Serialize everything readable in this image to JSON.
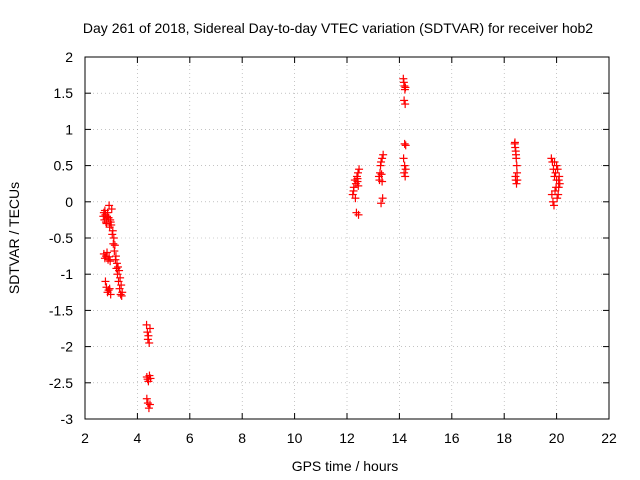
{
  "chart_data": {
    "type": "scatter",
    "title": "Day 261 of 2018, Sidereal Day-to-day VTEC variation (SDTVAR) for receiver hob2",
    "xlabel": "GPS time / hours",
    "ylabel": "SDTVAR / TECUs",
    "xlim": [
      2,
      22
    ],
    "ylim": [
      -3,
      2
    ],
    "xticks": [
      2,
      4,
      6,
      8,
      10,
      12,
      14,
      16,
      18,
      20,
      22
    ],
    "yticks": [
      -3,
      -2.5,
      -2,
      -1.5,
      -1,
      -0.5,
      0,
      0.5,
      1,
      1.5,
      2
    ],
    "xtick_labels": [
      "2",
      "4",
      "6",
      "8",
      "10",
      "12",
      "14",
      "16",
      "18",
      "20",
      "22"
    ],
    "ytick_labels": [
      "-3",
      "-2.5",
      "-2",
      "-1.5",
      "-1",
      "-0.5",
      "0",
      "0.5",
      "1",
      "1.5",
      "2"
    ],
    "grid": true,
    "marker": "+",
    "color": "#ff0000",
    "series": [
      {
        "name": "SDTVAR",
        "x": [
          2.7,
          2.74,
          2.78,
          2.82,
          2.86,
          2.9,
          2.94,
          2.98,
          3.02,
          3.06,
          3.1,
          3.14,
          3.18,
          3.22,
          3.26,
          3.3,
          3.34,
          3.38,
          3.42,
          2.72,
          2.76,
          2.8,
          2.84,
          2.88,
          2.92,
          2.96,
          3.0,
          3.04,
          3.08,
          3.12,
          3.16,
          3.2,
          3.24,
          3.28,
          3.32,
          3.36,
          3.4,
          2.72,
          2.76,
          2.8,
          2.84,
          2.88,
          2.92,
          2.96,
          2.78,
          2.82,
          2.86,
          2.9,
          2.94,
          2.98,
          4.35,
          4.38,
          4.4,
          4.42,
          4.45,
          4.48,
          4.36,
          4.39,
          4.42,
          4.46,
          4.5,
          4.36,
          4.4,
          4.44,
          4.48,
          12.22,
          12.26,
          12.3,
          12.34,
          12.38,
          12.42,
          12.46,
          12.25,
          12.32,
          12.4,
          12.36,
          12.44,
          12.4,
          12.43,
          13.22,
          13.26,
          13.3,
          13.34,
          13.38,
          13.24,
          13.28,
          13.32,
          13.36,
          13.3,
          13.34,
          14.15,
          14.17,
          14.19,
          14.21,
          14.23,
          14.18,
          14.22,
          14.2,
          14.24,
          14.16,
          14.2,
          14.24,
          14.18,
          14.22,
          18.4,
          18.42,
          18.44,
          18.46,
          18.48,
          18.5,
          18.43,
          18.47,
          18.41,
          18.45,
          18.49,
          18.44,
          19.8,
          19.84,
          19.88,
          19.92,
          19.96,
          20.0,
          20.04,
          20.08,
          20.12,
          19.86,
          19.9,
          19.94,
          19.98,
          20.02,
          20.06,
          20.1,
          19.82,
          19.92,
          20.0,
          20.08
        ],
        "y": [
          -0.2,
          -0.25,
          -0.18,
          -0.3,
          -0.15,
          -0.22,
          -0.35,
          -0.28,
          -0.1,
          -0.4,
          -0.5,
          -0.6,
          -0.75,
          -0.85,
          -0.9,
          -0.95,
          -1.05,
          -1.15,
          -1.25,
          -0.15,
          -0.12,
          -0.28,
          -0.2,
          -0.22,
          -0.05,
          -0.25,
          -0.32,
          -0.45,
          -0.58,
          -0.68,
          -0.8,
          -0.92,
          -1.0,
          -1.1,
          -1.2,
          -1.28,
          -1.3,
          -0.72,
          -0.78,
          -0.75,
          -0.7,
          -0.8,
          -0.76,
          -0.82,
          -1.1,
          -1.18,
          -1.25,
          -1.22,
          -1.2,
          -1.28,
          -1.7,
          -1.8,
          -1.9,
          -1.85,
          -1.95,
          -1.75,
          -2.42,
          -2.45,
          -2.48,
          -2.4,
          -2.44,
          -2.72,
          -2.78,
          -2.85,
          -2.8,
          0.1,
          0.2,
          0.3,
          0.25,
          0.35,
          0.4,
          0.45,
          0.15,
          0.05,
          0.28,
          -0.15,
          -0.18,
          0.32,
          0.22,
          0.35,
          0.4,
          0.55,
          0.6,
          0.65,
          0.3,
          0.5,
          0.38,
          0.05,
          -0.02,
          0.28,
          1.7,
          1.65,
          1.6,
          1.55,
          1.58,
          1.4,
          1.35,
          0.8,
          0.78,
          0.6,
          0.5,
          0.45,
          0.4,
          0.35,
          0.8,
          0.75,
          0.7,
          0.6,
          0.5,
          0.3,
          0.35,
          0.25,
          0.82,
          0.65,
          0.4,
          0.3,
          0.6,
          0.55,
          0.45,
          0.35,
          0.4,
          0.5,
          0.45,
          0.3,
          0.25,
          0.0,
          -0.05,
          0.15,
          0.2,
          0.05,
          0.1,
          0.35,
          0.1,
          0.55,
          0.3,
          0.2
        ]
      }
    ]
  }
}
